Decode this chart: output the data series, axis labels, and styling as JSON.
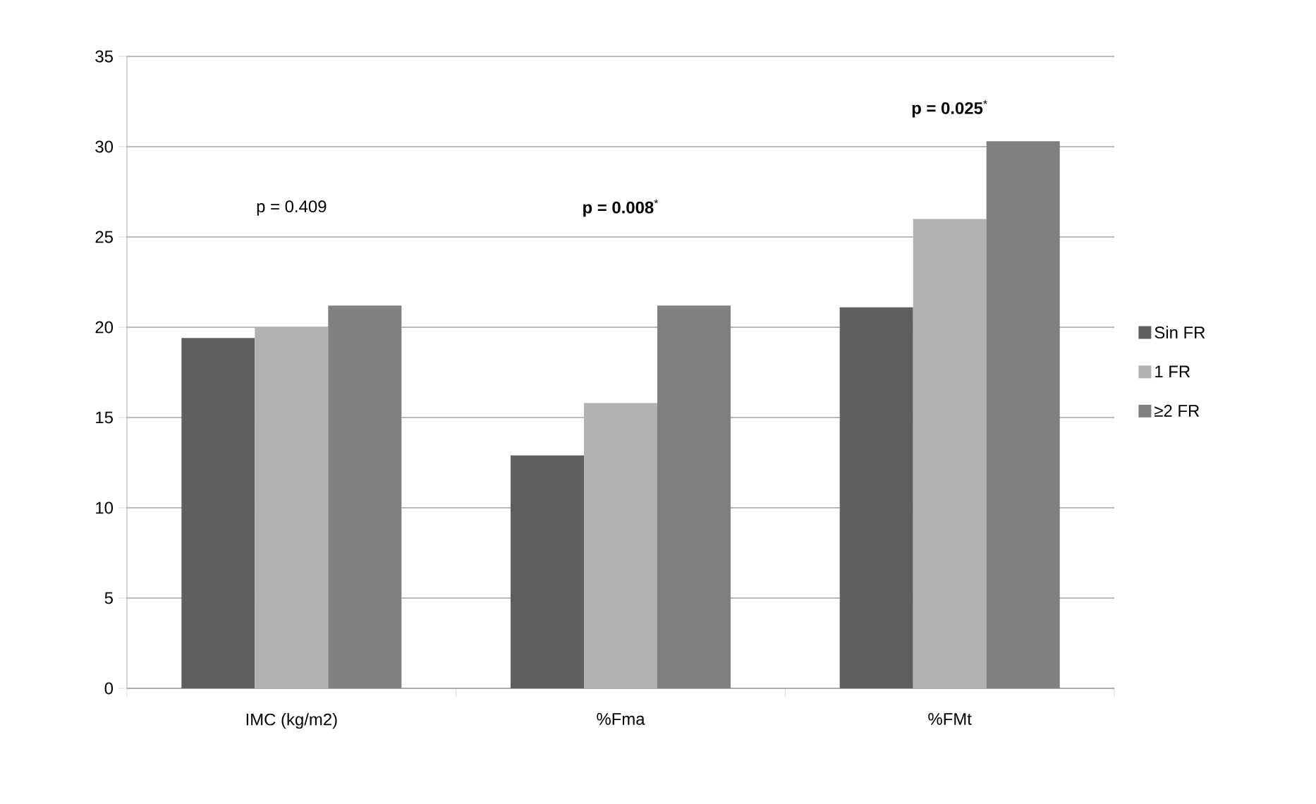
{
  "chart_data": {
    "type": "bar",
    "categories": [
      "IMC (kg/m2)",
      "%Fma",
      "%FMt"
    ],
    "series": [
      {
        "name": "Sin FR",
        "color": "#5f5f5f",
        "values": [
          19.4,
          12.9,
          21.1
        ]
      },
      {
        "name": "1 FR",
        "color": "#b2b2b2",
        "values": [
          20.0,
          15.8,
          26.0
        ]
      },
      {
        "name": "≥2 FR",
        "color": "#808080",
        "values": [
          21.2,
          21.2,
          30.3
        ]
      }
    ],
    "ylim": [
      0,
      35
    ],
    "yticks": [
      0,
      5,
      10,
      15,
      20,
      25,
      30,
      35
    ],
    "grid": "y",
    "legend": "right",
    "annotations": [
      "p = 0.409",
      "**p = 0.008**$^{*}$",
      "**p = 0.025**$^{*}$"
    ]
  }
}
